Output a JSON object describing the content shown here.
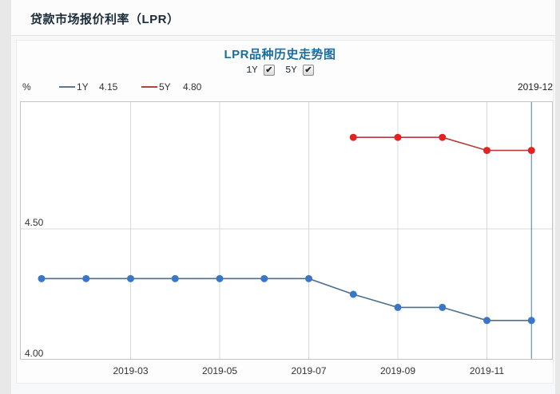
{
  "page": {
    "title": "贷款市场报价利率（LPR）"
  },
  "chart": {
    "title": "LPR品种历史走势图",
    "unit": "%",
    "checkboxes": [
      {
        "label": "1Y",
        "checked": true
      },
      {
        "label": "5Y",
        "checked": true
      }
    ],
    "legend": [
      {
        "name": "1Y",
        "value": "4.15",
        "swatch_color": "#5f7890"
      },
      {
        "name": "5Y",
        "value": "4.80",
        "swatch_color": "#b54040"
      }
    ],
    "current_date": "2019-12",
    "colors": {
      "title": "#186e9e",
      "date_line": "#4a7ba6",
      "grid": "#d9d9d9",
      "plot_border": "#c4c4c4"
    }
  },
  "chart_data": {
    "type": "line",
    "title": "LPR品种历史走势图",
    "ylabel": "%",
    "x": [
      "2019-01",
      "2019-02",
      "2019-03",
      "2019-04",
      "2019-05",
      "2019-06",
      "2019-07",
      "2019-08",
      "2019-09",
      "2019-10",
      "2019-11",
      "2019-12"
    ],
    "series": [
      {
        "name": "1Y",
        "line_color": "#4f6d8f",
        "dot_color": "#3a76c8",
        "values": [
          4.31,
          4.31,
          4.31,
          4.31,
          4.31,
          4.31,
          4.31,
          4.25,
          4.2,
          4.2,
          4.15,
          4.15
        ]
      },
      {
        "name": "5Y",
        "line_color": "#b23c3c",
        "dot_color": "#e32222",
        "values": [
          null,
          null,
          null,
          null,
          null,
          null,
          null,
          4.85,
          4.85,
          4.85,
          4.8,
          4.8
        ]
      }
    ],
    "ylim": [
      4.0,
      5.0
    ],
    "yticks": [
      4.5,
      4.0
    ],
    "xticks": [
      "2019-03",
      "2019-05",
      "2019-07",
      "2019-09",
      "2019-11"
    ],
    "grid": true,
    "legend_position": "top-left",
    "marker_line_x": "2019-12"
  }
}
